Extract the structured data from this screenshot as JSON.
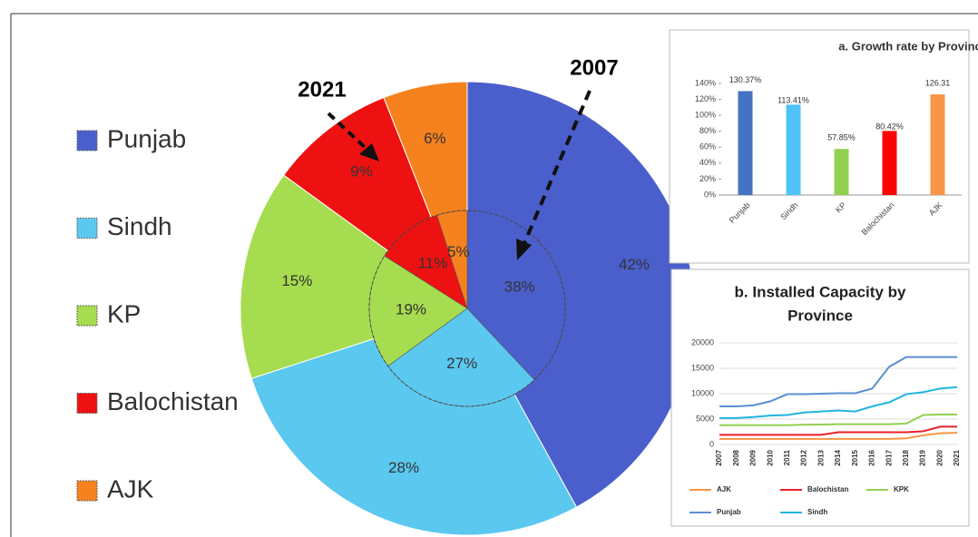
{
  "chart_data": [
    {
      "type": "pie",
      "categories": [
        "Punjab",
        "Sindh",
        "KP",
        "Balochistan",
        "AJK"
      ],
      "colors": [
        "#4a5fcc",
        "#5bc8f0",
        "#a6dc4f",
        "#ee1111",
        "#f5821f"
      ],
      "series": [
        {
          "name": "2021",
          "values": [
            42,
            28,
            15,
            9,
            6
          ],
          "value_labels": [
            "42%",
            "28%",
            "15%",
            "9%",
            "6%"
          ]
        },
        {
          "name": "2007",
          "values": [
            38,
            27,
            19,
            11,
            5
          ],
          "value_labels": [
            "38%",
            "27%",
            "19%",
            "11%",
            "5%"
          ]
        }
      ]
    },
    {
      "type": "bar",
      "title": "a. Growth rate by Provinc",
      "categories": [
        "Punjab",
        "Sindh",
        "KP",
        "Balochistan",
        "AJK"
      ],
      "values": [
        130.37,
        113.41,
        57.85,
        80.42,
        126.31
      ],
      "value_labels": [
        "130.37%",
        "113.41%",
        "57.85%",
        "80.42%",
        "126.31"
      ],
      "colors": [
        "#4472c4",
        "#4fc3f7",
        "#92d050",
        "#ff0000",
        "#f79646"
      ],
      "ylim": [
        0,
        140
      ],
      "yticks": [
        {
          "value": 0,
          "label": "0%"
        },
        {
          "value": 20,
          "label": "20%"
        },
        {
          "value": 40,
          "label": "40%"
        },
        {
          "value": 60,
          "label": "60%"
        },
        {
          "value": 80,
          "label": "80%"
        },
        {
          "value": 100,
          "label": "100%"
        },
        {
          "value": 120,
          "label": "120%"
        },
        {
          "value": 140,
          "label": "140%"
        }
      ]
    },
    {
      "type": "line",
      "title": [
        "b. Installed Capacity by",
        "Province"
      ],
      "x": [
        2007,
        2008,
        2009,
        2010,
        2011,
        2012,
        2013,
        2014,
        2015,
        2016,
        2017,
        2018,
        2019,
        2020,
        2021
      ],
      "xlim": [
        2007,
        2021
      ],
      "ylim": [
        0,
        20000
      ],
      "yticks": [
        0,
        5000,
        10000,
        15000,
        20000
      ],
      "series": [
        {
          "name": "AJK",
          "color": "#f79646",
          "values": [
            1100,
            1100,
            1100,
            1100,
            1100,
            1100,
            1100,
            1100,
            1100,
            1100,
            1100,
            1200,
            1800,
            2200,
            2300
          ]
        },
        {
          "name": "Balochistan",
          "color": "#e8212b",
          "values": [
            1900,
            1900,
            1900,
            1900,
            1900,
            1900,
            1900,
            2400,
            2400,
            2400,
            2400,
            2400,
            2600,
            3500,
            3500
          ]
        },
        {
          "name": "KPK",
          "color": "#92d050",
          "values": [
            3800,
            3800,
            3800,
            3800,
            3800,
            3900,
            3900,
            4000,
            4000,
            4000,
            4000,
            4100,
            5800,
            5900,
            5900
          ]
        },
        {
          "name": "Punjab",
          "color": "#5b8fd0",
          "values": [
            7500,
            7500,
            7700,
            8500,
            9900,
            9900,
            10000,
            10100,
            10100,
            11000,
            15300,
            17200,
            17200,
            17200,
            17200
          ]
        },
        {
          "name": "Sindh",
          "color": "#1fb5e0",
          "values": [
            5200,
            5200,
            5400,
            5700,
            5800,
            6300,
            6500,
            6700,
            6500,
            7500,
            8300,
            9900,
            10300,
            11000,
            11300
          ]
        }
      ]
    }
  ]
}
